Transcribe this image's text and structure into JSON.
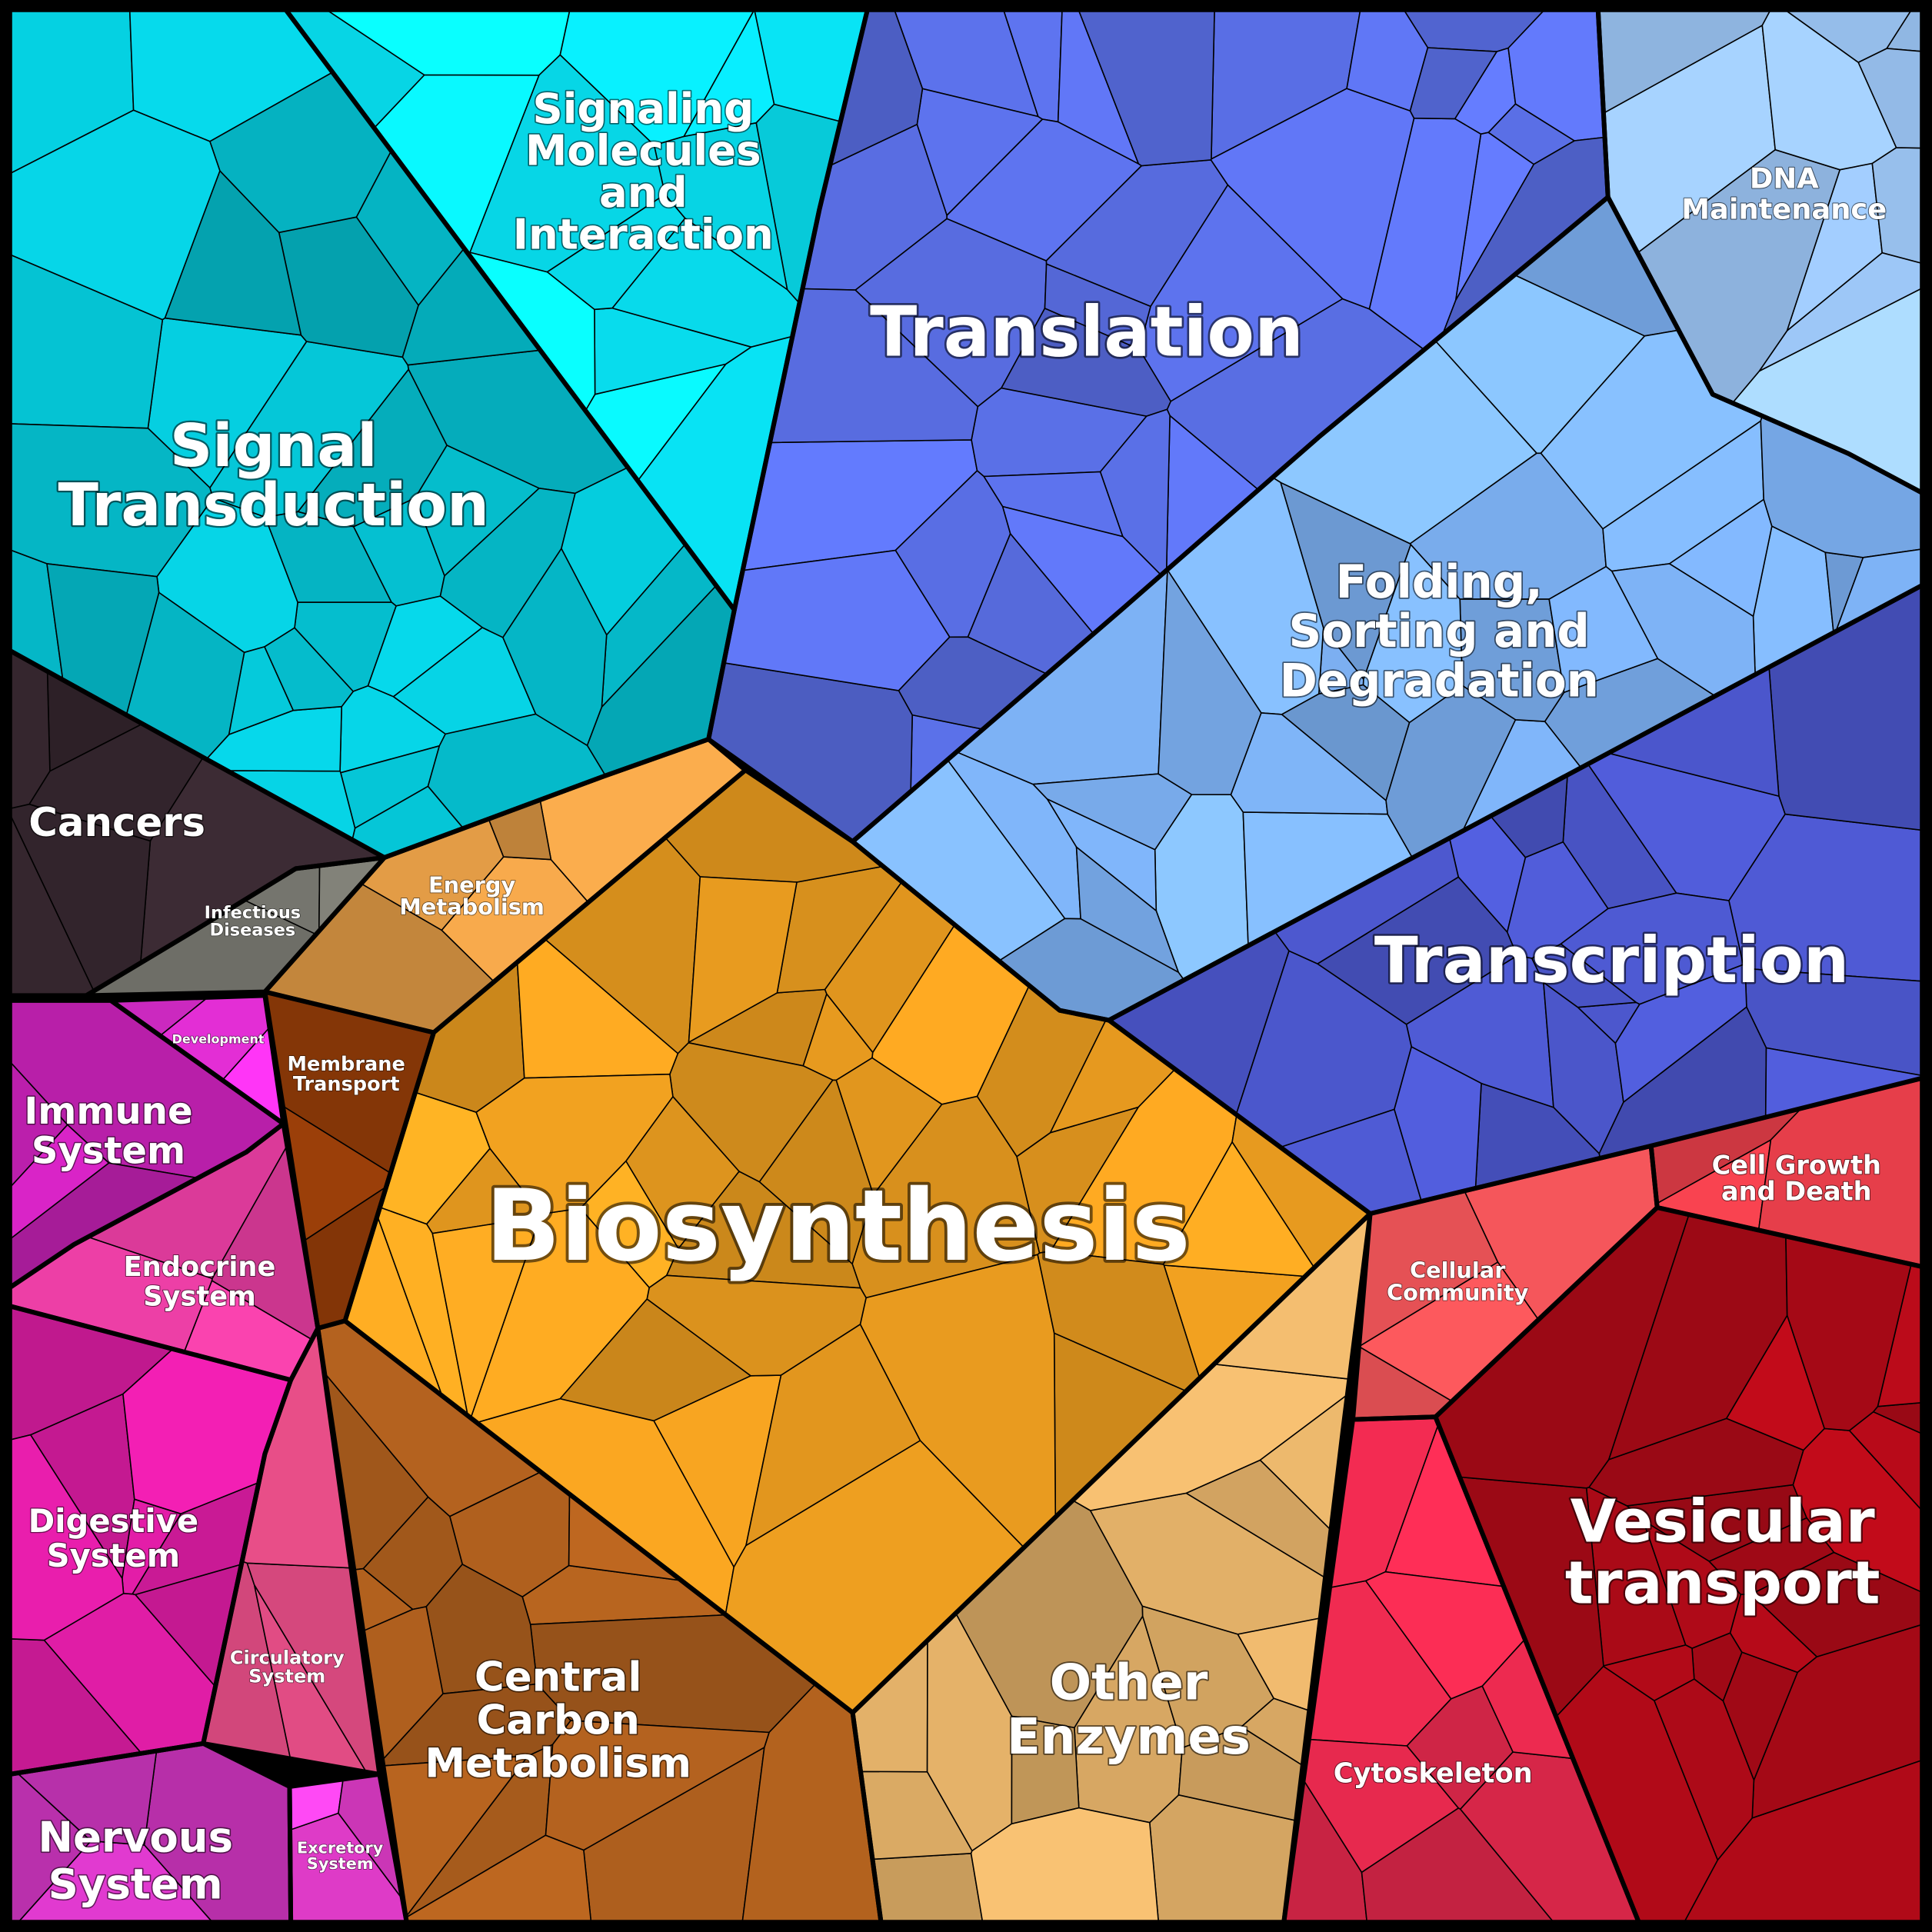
{
  "diagram": {
    "type": "voronoi-treemap",
    "categories": [
      {
        "id": "signal-transduction",
        "label": [
          "Signal",
          "Transduction"
        ],
        "color": "#05BFCF"
      },
      {
        "id": "signaling-molecules",
        "label": [
          "Signaling",
          "Molecules",
          "and",
          "Interaction"
        ],
        "color": "#08E4F5"
      },
      {
        "id": "translation",
        "label": [
          "Translation"
        ],
        "color": "#5A6FE6"
      },
      {
        "id": "dna-maintenance",
        "label": [
          "DNA",
          "Maintenance"
        ],
        "color": "#9EC8F8"
      },
      {
        "id": "folding-sorting",
        "label": [
          "Folding,",
          "Sorting and",
          "Degradation"
        ],
        "color": "#7CB0F2"
      },
      {
        "id": "transcription",
        "label": [
          "Transcription"
        ],
        "color": "#4A55C8"
      },
      {
        "id": "cancers",
        "label": [
          "Cancers"
        ],
        "color": "#35262E"
      },
      {
        "id": "infectious-diseases",
        "label": [
          "Infectious",
          "Diseases"
        ],
        "color": "#7E7E76"
      },
      {
        "id": "energy-metabolism",
        "label": [
          "Energy",
          "Metabolism"
        ],
        "color": "#E09A45"
      },
      {
        "id": "membrane-transport",
        "label": [
          "Membrane",
          "Transport"
        ],
        "color": "#8E3A08"
      },
      {
        "id": "biosynthesis",
        "label": [
          "Biosynthesis"
        ],
        "color": "#F0A020"
      },
      {
        "id": "development",
        "label": [
          "Development"
        ],
        "color": "#EE30E0"
      },
      {
        "id": "immune-system",
        "label": [
          "Immune",
          "System"
        ],
        "color": "#C020B0"
      },
      {
        "id": "endocrine-system",
        "label": [
          "Endocrine",
          "System"
        ],
        "color": "#F040A8"
      },
      {
        "id": "digestive-system",
        "label": [
          "Digestive",
          "System"
        ],
        "color": "#D81CA0"
      },
      {
        "id": "circulatory-system",
        "label": [
          "Circulatory",
          "System"
        ],
        "color": "#E84E88"
      },
      {
        "id": "nervous-system",
        "label": [
          "Nervous",
          "System"
        ],
        "color": "#D838C8"
      },
      {
        "id": "excretory-system",
        "label": [
          "Excretory",
          "System"
        ],
        "color": "#F040D8"
      },
      {
        "id": "central-carbon",
        "label": [
          "Central",
          "Carbon",
          "Metabolism"
        ],
        "color": "#B0601E"
      },
      {
        "id": "other-enzymes",
        "label": [
          "Other",
          "Enzymes"
        ],
        "color": "#E2B068"
      },
      {
        "id": "cellular-community",
        "label": [
          "Cellular",
          "Community"
        ],
        "color": "#EE5458"
      },
      {
        "id": "cell-growth-death",
        "label": [
          "Cell Growth",
          "and Death"
        ],
        "color": "#E03C48"
      },
      {
        "id": "vesicular-transport",
        "label": [
          "Vesicular",
          "transport"
        ],
        "color": "#B00A18"
      },
      {
        "id": "cytoskeleton",
        "label": [
          "Cytoskeleton"
        ],
        "color": "#E2284C"
      }
    ]
  }
}
